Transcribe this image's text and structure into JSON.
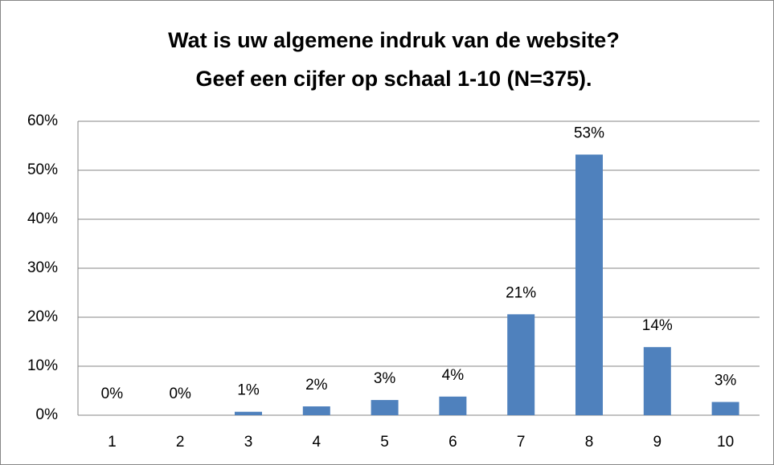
{
  "chart_data": {
    "type": "bar",
    "title": [
      "Wat is uw algemene indruk van de website?",
      "Geef een cijfer op schaal 1-10 (N=375)."
    ],
    "categories": [
      "1",
      "2",
      "3",
      "4",
      "5",
      "6",
      "7",
      "8",
      "9",
      "10"
    ],
    "values": [
      0,
      0,
      0.7,
      1.8,
      3.1,
      3.8,
      20.6,
      53.2,
      13.9,
      2.7
    ],
    "value_labels": [
      "0%",
      "0%",
      "1%",
      "2%",
      "3%",
      "4%",
      "21%",
      "53%",
      "14%",
      "3%"
    ],
    "color": "#4f81bd",
    "ylim": [
      0,
      60
    ],
    "yticks": [
      {
        "value": 0,
        "label": "0%"
      },
      {
        "value": 10,
        "label": "10%"
      },
      {
        "value": 20,
        "label": "20%"
      },
      {
        "value": 30,
        "label": "30%"
      },
      {
        "value": 40,
        "label": "40%"
      },
      {
        "value": 50,
        "label": "50%"
      },
      {
        "value": 60,
        "label": "60%"
      }
    ],
    "grid": true
  }
}
